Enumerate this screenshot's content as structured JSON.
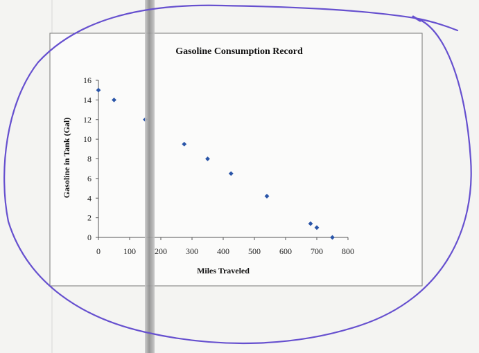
{
  "chart_data": {
    "type": "scatter",
    "title": "Gasoline Consumption Record",
    "xlabel": "Miles Traveled",
    "ylabel": "Gasoline in Tank (Gal)",
    "xlim": [
      0,
      800
    ],
    "ylim": [
      0,
      16
    ],
    "x_ticks": [
      0,
      100,
      200,
      300,
      400,
      500,
      600,
      700,
      800
    ],
    "y_ticks": [
      0,
      2,
      4,
      6,
      8,
      10,
      12,
      14,
      16
    ],
    "grid": false,
    "legend": "none",
    "points": [
      {
        "x": 0,
        "y": 15
      },
      {
        "x": 50,
        "y": 14
      },
      {
        "x": 150,
        "y": 12
      },
      {
        "x": 275,
        "y": 9.5
      },
      {
        "x": 350,
        "y": 8
      },
      {
        "x": 425,
        "y": 6.5
      },
      {
        "x": 540,
        "y": 4.2
      },
      {
        "x": 680,
        "y": 1.4
      },
      {
        "x": 700,
        "y": 1
      },
      {
        "x": 750,
        "y": 0
      }
    ],
    "marker_color": "#2a55a8"
  },
  "colors": {
    "annotation_loop": "#6650cf",
    "axis": "#555555",
    "text": "#111111",
    "fold_shadow": "#8d8d8d"
  }
}
